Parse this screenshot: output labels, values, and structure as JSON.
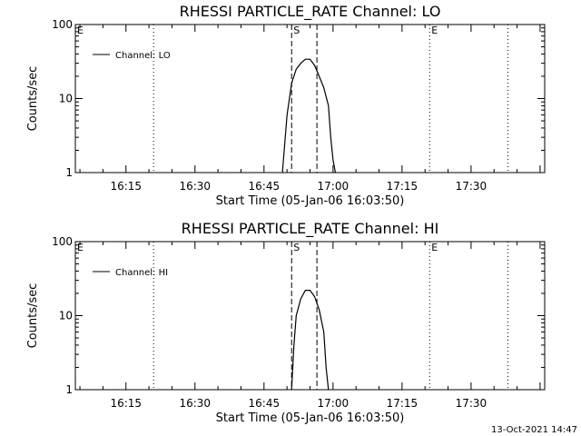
{
  "footer": {
    "timestamp": "13-Oct-2021 14:47"
  },
  "chart_data": [
    {
      "type": "line",
      "title": "RHESSI PARTICLE_RATE Channel: LO",
      "xlabel": "Start Time (05-Jan-06 16:03:50)",
      "ylabel": "Counts/sec",
      "yscale": "log",
      "xlim": [
        "16:04",
        "17:46"
      ],
      "ylim": [
        1,
        100
      ],
      "x_ticks": [
        "16:15",
        "16:30",
        "16:45",
        "17:00",
        "17:15",
        "17:30"
      ],
      "y_ticks": [
        "1",
        "10",
        "100"
      ],
      "legend": {
        "placement": "top-left",
        "entries": [
          "Channel: LO"
        ]
      },
      "series": [
        {
          "name": "Channel: LO",
          "x": [
            "16:49",
            "16:50",
            "16:51",
            "16:52",
            "16:53",
            "16:54",
            "16:55",
            "16:56",
            "16:57",
            "16:58",
            "16:59",
            "16:59.5",
            "17:00",
            "17:00.5"
          ],
          "values": [
            1,
            6,
            16,
            25,
            30,
            34,
            34,
            28,
            20,
            14,
            8,
            3,
            1.5,
            1
          ]
        }
      ],
      "markers": [
        {
          "label": "E",
          "time": "16:04",
          "style": "dotted"
        },
        {
          "label": "",
          "time": "16:21",
          "style": "dotted"
        },
        {
          "label": "S",
          "time": "16:51",
          "style": "dashed"
        },
        {
          "label": "",
          "time": "16:56.5",
          "style": "dashed"
        },
        {
          "label": "E",
          "time": "17:21",
          "style": "dotted"
        },
        {
          "label": "",
          "time": "17:38",
          "style": "dotted"
        }
      ]
    },
    {
      "type": "line",
      "title": "RHESSI PARTICLE_RATE Channel: HI",
      "xlabel": "Start Time (05-Jan-06 16:03:50)",
      "ylabel": "Counts/sec",
      "yscale": "log",
      "xlim": [
        "16:04",
        "17:46"
      ],
      "ylim": [
        1,
        100
      ],
      "x_ticks": [
        "16:15",
        "16:30",
        "16:45",
        "17:00",
        "17:15",
        "17:30"
      ],
      "y_ticks": [
        "1",
        "10",
        "100"
      ],
      "legend": {
        "placement": "top-left",
        "entries": [
          "Channel: HI"
        ]
      },
      "series": [
        {
          "name": "Channel: HI",
          "x": [
            "16:51",
            "16:51.5",
            "16:52",
            "16:53",
            "16:54",
            "16:55",
            "16:56",
            "16:57",
            "16:58",
            "16:58.5",
            "16:59"
          ],
          "values": [
            1,
            4,
            10,
            17,
            22,
            22,
            18,
            12,
            6,
            2,
            1
          ]
        }
      ],
      "markers": [
        {
          "label": "E",
          "time": "16:04",
          "style": "dotted"
        },
        {
          "label": "",
          "time": "16:21",
          "style": "dotted"
        },
        {
          "label": "S",
          "time": "16:51",
          "style": "dashed"
        },
        {
          "label": "",
          "time": "16:56.5",
          "style": "dashed"
        },
        {
          "label": "E",
          "time": "17:21",
          "style": "dotted"
        },
        {
          "label": "",
          "time": "17:38",
          "style": "dotted"
        }
      ]
    }
  ]
}
